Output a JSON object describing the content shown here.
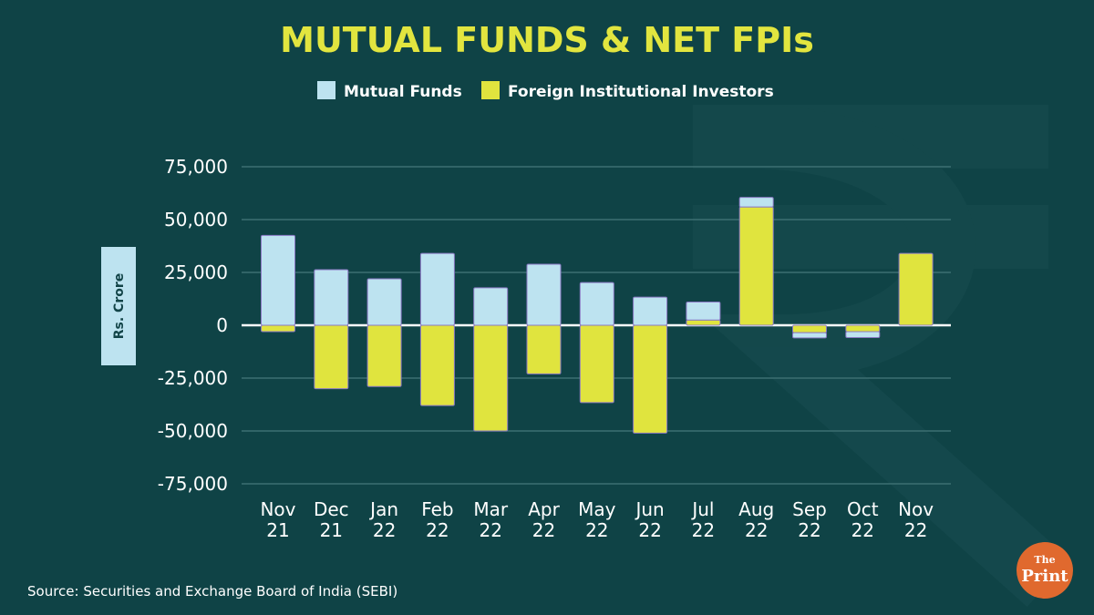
{
  "colors": {
    "background": "#0f4346",
    "watermark": "#15494c",
    "mutual_funds": "#bde3f0",
    "fii": "#e0e43e",
    "bar_stroke": "#8a78c4",
    "title": "#e2e53f",
    "gridline": "#3d6f72",
    "zero_line": "#ffffff",
    "ylabel_box": "#bde3f0",
    "logo": "#e0692e"
  },
  "chart_data": {
    "type": "bar",
    "title": "MUTUAL FUNDS & NET FPIs",
    "ylabel": "Rs. Crore",
    "ylim": [
      -75000,
      75000
    ],
    "yticks": [
      75000,
      50000,
      25000,
      0,
      -25000,
      -50000,
      -75000
    ],
    "ytick_labels": [
      "75,000",
      "50,000",
      "25,000",
      "0",
      "-25,000",
      "-50,000",
      "-75,000"
    ],
    "grid": true,
    "legend_position": "top-center",
    "categories": [
      [
        "Nov",
        "21"
      ],
      [
        "Dec",
        "21"
      ],
      [
        "Jan",
        "22"
      ],
      [
        "Feb",
        "22"
      ],
      [
        "Mar",
        "22"
      ],
      [
        "Apr",
        "22"
      ],
      [
        "May",
        "22"
      ],
      [
        "Jun",
        "22"
      ],
      [
        "Jul",
        "22"
      ],
      [
        "Aug",
        "22"
      ],
      [
        "Sep",
        "22"
      ],
      [
        "Oct",
        "22"
      ],
      [
        "Nov",
        "22"
      ]
    ],
    "series": [
      {
        "name": "Mutual Funds",
        "values": [
          42500,
          26300,
          22000,
          34000,
          17700,
          28900,
          20200,
          13300,
          8500,
          4500,
          -2500,
          -2800,
          0
        ]
      },
      {
        "name": "Foreign Institutional Investors",
        "values": [
          -3000,
          -30000,
          -29000,
          -38000,
          -50000,
          -23000,
          -36600,
          -51000,
          2500,
          56000,
          -3500,
          -3000,
          34000
        ]
      }
    ]
  },
  "source": "Source: Securities and Exchange Board of India (SEBI)",
  "logo": {
    "line1": "The",
    "line2": "Print"
  }
}
